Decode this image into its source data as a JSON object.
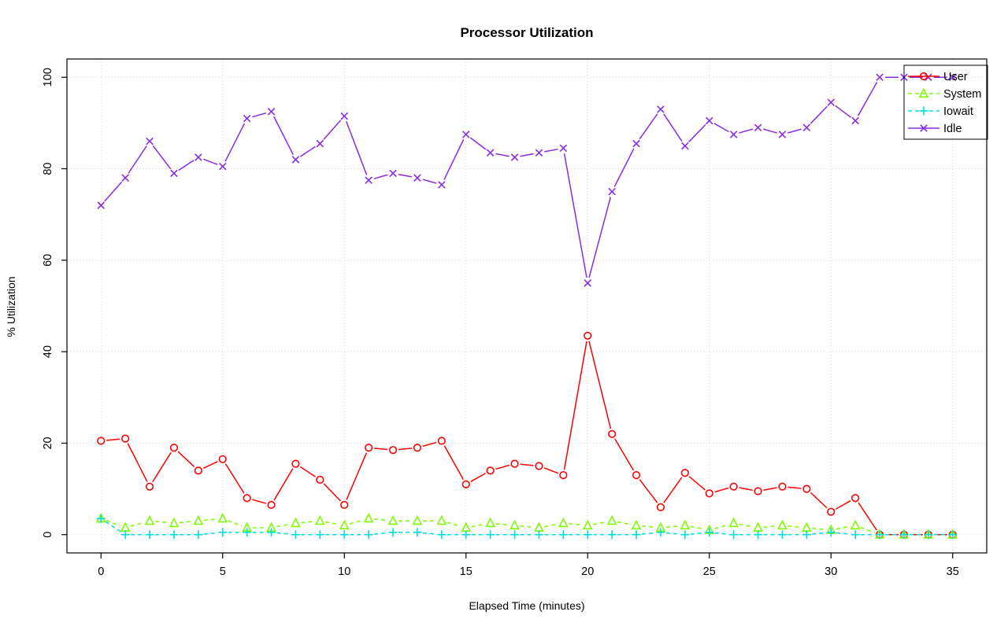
{
  "chart_data": {
    "type": "line",
    "title": "Processor Utilization",
    "xlabel": "Elapsed Time (minutes)",
    "ylabel": "% Utilization",
    "xlim": [
      0,
      35
    ],
    "ylim": [
      0,
      100
    ],
    "xticks": [
      0,
      5,
      10,
      15,
      20,
      25,
      30,
      35
    ],
    "yticks": [
      0,
      20,
      40,
      60,
      80,
      100
    ],
    "grid": true,
    "legend_position": "top-right",
    "x": [
      0,
      1,
      2,
      3,
      4,
      5,
      6,
      7,
      8,
      9,
      10,
      11,
      12,
      13,
      14,
      15,
      16,
      17,
      18,
      19,
      20,
      21,
      22,
      23,
      24,
      25,
      26,
      27,
      28,
      29,
      30,
      31,
      32,
      33,
      34,
      35
    ],
    "series": [
      {
        "name": "User",
        "marker": "circle",
        "color": "#ff0000",
        "line": "solid",
        "values": [
          20.5,
          21,
          10.5,
          19,
          14,
          16.5,
          8,
          6.5,
          15.5,
          12,
          6.5,
          19,
          18.5,
          19,
          20.5,
          11,
          14,
          15.5,
          15,
          13,
          43.5,
          22,
          13,
          6,
          13.5,
          9,
          10.5,
          9.5,
          10.5,
          10,
          5,
          8,
          0,
          0,
          0,
          0
        ]
      },
      {
        "name": "System",
        "marker": "triangle",
        "color": "#7cfc00",
        "line": "dashed",
        "values": [
          3.5,
          1.5,
          3,
          2.5,
          3,
          3.5,
          1.5,
          1.5,
          2.5,
          3,
          2,
          3.5,
          3,
          3,
          3,
          1.5,
          2.5,
          2,
          1.5,
          2.5,
          2,
          3,
          2,
          1.5,
          2,
          1,
          2.5,
          1.5,
          2,
          1.5,
          1,
          2,
          0,
          0,
          0,
          0
        ]
      },
      {
        "name": "Iowait",
        "marker": "plus",
        "color": "#00dddd",
        "line": "dashed",
        "values": [
          3.5,
          0,
          0,
          0,
          0,
          0.5,
          0.5,
          0.5,
          0,
          0,
          0,
          0,
          0.5,
          0.5,
          0,
          0,
          0,
          0,
          0,
          0,
          0,
          0,
          0,
          0.5,
          0,
          0.5,
          0,
          0,
          0,
          0,
          0.5,
          0,
          0,
          0,
          0,
          0
        ]
      },
      {
        "name": "Idle",
        "marker": "x",
        "color": "#8a2be2",
        "line": "solid",
        "values": [
          72,
          78,
          86,
          79,
          82.5,
          80.5,
          91,
          92.5,
          82,
          85.5,
          91.5,
          77.5,
          79,
          78,
          76.5,
          87.5,
          83.5,
          82.5,
          83.5,
          84.5,
          55,
          75,
          85.5,
          93,
          85,
          90.5,
          87.5,
          89,
          87.5,
          89,
          94.5,
          90.5,
          100,
          100,
          100,
          100
        ]
      }
    ]
  },
  "colors": {
    "background": "#ffffff",
    "grid": "#d6d6d6",
    "axis": "#000000",
    "text": "#000000",
    "legend_border": "#000000"
  }
}
